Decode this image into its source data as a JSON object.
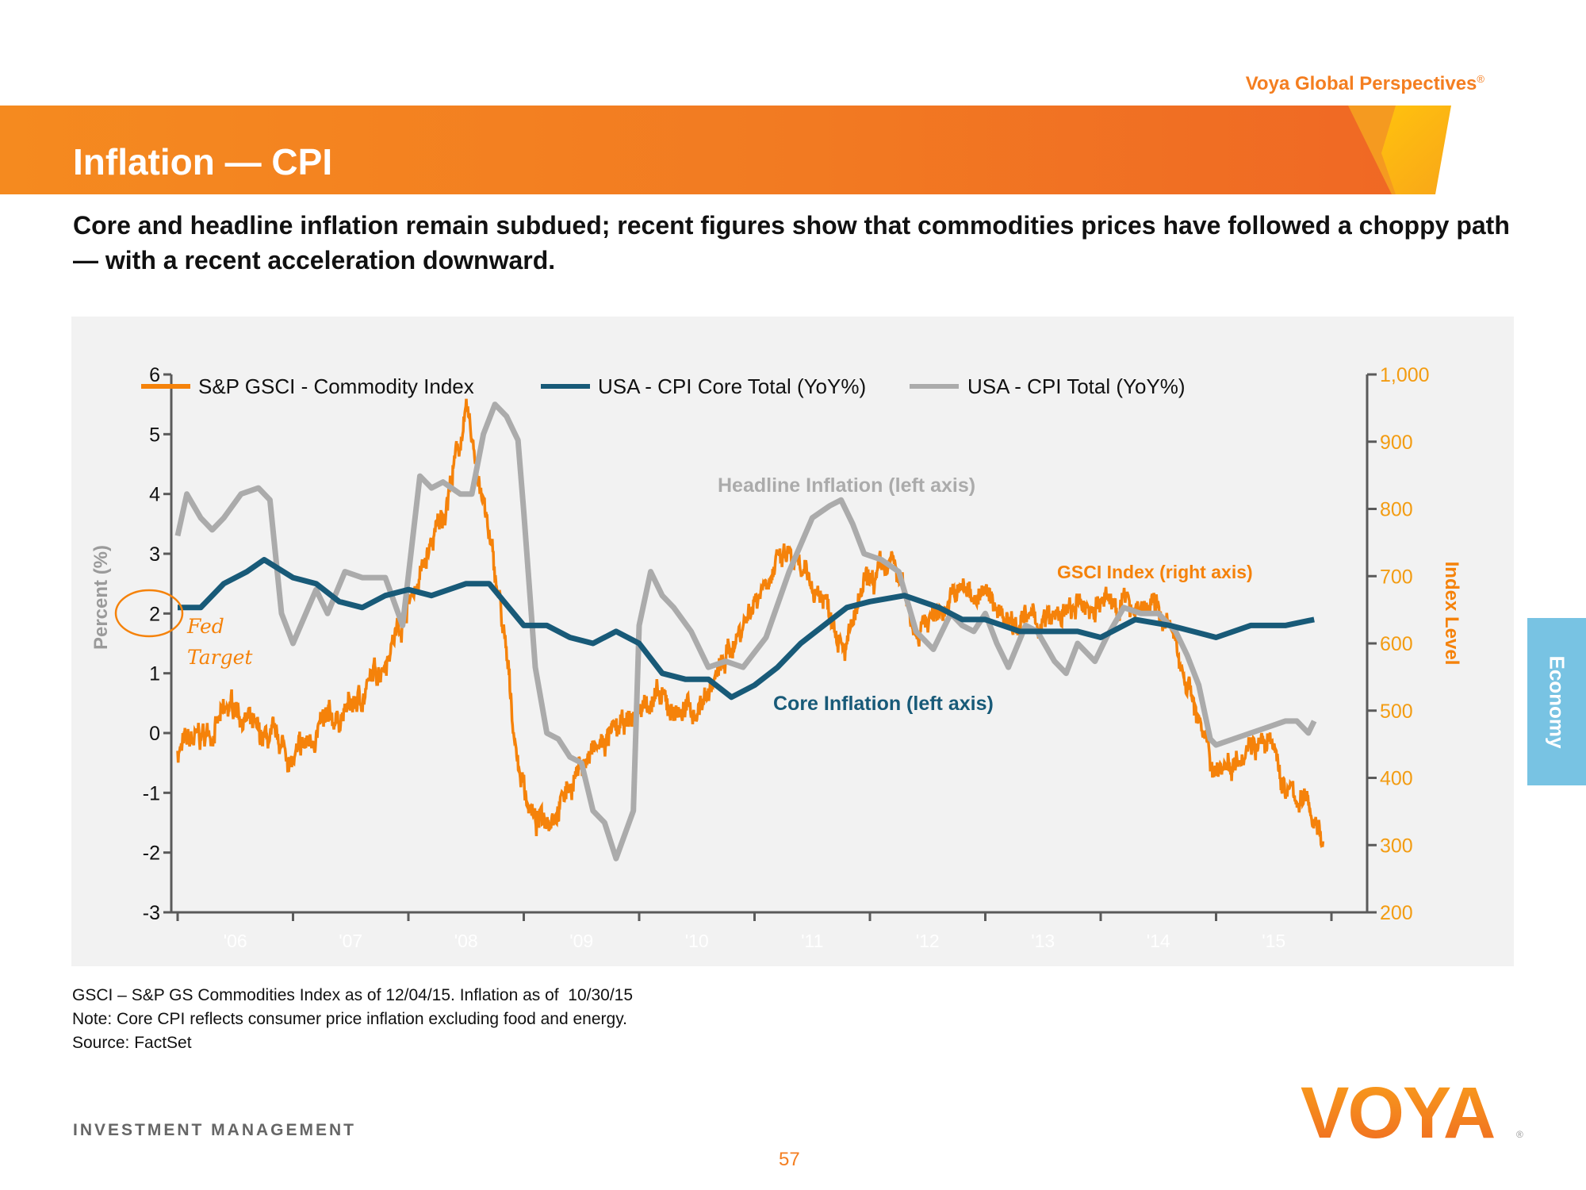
{
  "header": {
    "brand_tagline": "Voya Global Perspectives",
    "brand_mark": "®",
    "title": "Inflation — CPI",
    "subtitle": "Core and headline inflation remain subdued; recent figures show that commodities prices have followed a choppy path — with a recent acceleration downward."
  },
  "colors": {
    "brand_orange": "#F47E20",
    "gsci": "#F5820A",
    "core": "#185A78",
    "headline": "#ABABAB",
    "side_tab": "#78C3E3"
  },
  "side_tab": {
    "label": "Economy"
  },
  "footnotes": [
    "GSCI – S&P GS Commodities Index as of 12/04/15. Inflation as of  10/30/15",
    "Note: Core CPI reflects consumer price inflation excluding food and energy.",
    "Source: FactSet"
  ],
  "footer": {
    "division": "INVESTMENT MANAGEMENT",
    "page_number": "57",
    "logo_text": "VOYA"
  },
  "chart_data": {
    "type": "line",
    "title": "",
    "xlabel": "",
    "ylabel": "Percent (%)",
    "y2label": "Index Level",
    "ylim": [
      -3,
      6
    ],
    "y2lim": [
      200,
      1000
    ],
    "xlim": [
      2005.95,
      2016.0
    ],
    "yticks": [
      6,
      5,
      4,
      3,
      2,
      1,
      0,
      -1,
      -2,
      -3
    ],
    "y2ticks": [
      "1,000",
      "900",
      "800",
      "700",
      "600",
      "500",
      "400",
      "300",
      "200"
    ],
    "y2tick_values": [
      1000,
      900,
      800,
      700,
      600,
      500,
      400,
      300,
      200
    ],
    "xtick_boundaries": [
      2006,
      2007,
      2008,
      2009,
      2010,
      2011,
      2012,
      2013,
      2014,
      2015,
      2016
    ],
    "xtick_labels": [
      "'06",
      "'07",
      "'08",
      "'09",
      "'10",
      "'11",
      "'12",
      "'13",
      "'14",
      "'15"
    ],
    "grid": false,
    "legend_position": "top",
    "series": [
      {
        "name": "S&P GSCI - Commodity Index",
        "axis": "right",
        "x": [
          2006.0,
          2006.3,
          2006.5,
          2006.7,
          2006.9,
          2007.0,
          2007.2,
          2007.4,
          2007.6,
          2007.8,
          2007.95,
          2008.1,
          2008.3,
          2008.5,
          2008.6,
          2008.8,
          2008.95,
          2009.1,
          2009.3,
          2009.5,
          2009.75,
          2009.9,
          2010.1,
          2010.3,
          2010.5,
          2010.7,
          2010.9,
          2011.1,
          2011.3,
          2011.4,
          2011.6,
          2011.8,
          2011.95,
          2012.2,
          2012.4,
          2012.6,
          2012.8,
          2013.0,
          2013.2,
          2013.5,
          2013.8,
          2014.0,
          2014.3,
          2014.5,
          2014.6,
          2014.8,
          2014.95,
          2015.1,
          2015.3,
          2015.5,
          2015.6,
          2015.8,
          2015.93
        ],
        "values": [
          440,
          470,
          510,
          460,
          450,
          420,
          470,
          490,
          520,
          580,
          640,
          700,
          790,
          940,
          860,
          650,
          420,
          330,
          360,
          420,
          460,
          480,
          520,
          500,
          500,
          560,
          630,
          700,
          730,
          700,
          670,
          600,
          680,
          720,
          620,
          650,
          680,
          670,
          640,
          630,
          650,
          660,
          660,
          650,
          620,
          520,
          420,
          420,
          460,
          440,
          380,
          360,
          310
        ]
      },
      {
        "name": "USA - CPI Core Total (YoY%)",
        "axis": "left",
        "x": [
          2006.0,
          2006.2,
          2006.4,
          2006.6,
          2006.75,
          2007.0,
          2007.2,
          2007.4,
          2007.6,
          2007.8,
          2008.0,
          2008.2,
          2008.5,
          2008.7,
          2009.0,
          2009.2,
          2009.4,
          2009.6,
          2009.8,
          2010.0,
          2010.2,
          2010.4,
          2010.6,
          2010.8,
          2011.0,
          2011.2,
          2011.4,
          2011.6,
          2011.8,
          2012.0,
          2012.3,
          2012.6,
          2012.8,
          2013.0,
          2013.3,
          2013.6,
          2013.8,
          2014.0,
          2014.3,
          2014.6,
          2014.8,
          2015.0,
          2015.3,
          2015.6,
          2015.85
        ],
        "values": [
          2.1,
          2.1,
          2.5,
          2.7,
          2.9,
          2.6,
          2.5,
          2.2,
          2.1,
          2.3,
          2.4,
          2.3,
          2.5,
          2.5,
          1.8,
          1.8,
          1.6,
          1.5,
          1.7,
          1.5,
          1.0,
          0.9,
          0.9,
          0.6,
          0.8,
          1.1,
          1.5,
          1.8,
          2.1,
          2.2,
          2.3,
          2.1,
          1.9,
          1.9,
          1.7,
          1.7,
          1.7,
          1.6,
          1.9,
          1.8,
          1.7,
          1.6,
          1.8,
          1.8,
          1.9
        ]
      },
      {
        "name": "USA - CPI Total (YoY%)",
        "axis": "left",
        "x": [
          2006.0,
          2006.08,
          2006.2,
          2006.3,
          2006.4,
          2006.55,
          2006.7,
          2006.8,
          2006.9,
          2007.0,
          2007.2,
          2007.3,
          2007.45,
          2007.6,
          2007.8,
          2007.95,
          2008.1,
          2008.2,
          2008.3,
          2008.45,
          2008.55,
          2008.65,
          2008.75,
          2008.85,
          2008.95,
          2009.0,
          2009.1,
          2009.2,
          2009.3,
          2009.4,
          2009.5,
          2009.6,
          2009.7,
          2009.8,
          2009.95,
          2010.0,
          2010.1,
          2010.2,
          2010.3,
          2010.45,
          2010.6,
          2010.75,
          2010.9,
          2011.1,
          2011.3,
          2011.5,
          2011.65,
          2011.75,
          2011.85,
          2011.95,
          2012.1,
          2012.25,
          2012.4,
          2012.55,
          2012.7,
          2012.8,
          2012.9,
          2013.0,
          2013.1,
          2013.2,
          2013.35,
          2013.45,
          2013.6,
          2013.7,
          2013.8,
          2013.95,
          2014.05,
          2014.2,
          2014.35,
          2014.5,
          2014.65,
          2014.75,
          2014.85,
          2014.95,
          2015.0,
          2015.15,
          2015.3,
          2015.45,
          2015.6,
          2015.7,
          2015.8,
          2015.85
        ],
        "values": [
          3.3,
          4.0,
          3.6,
          3.4,
          3.6,
          4.0,
          4.1,
          3.9,
          2.0,
          1.5,
          2.4,
          2.0,
          2.7,
          2.6,
          2.6,
          1.8,
          4.3,
          4.1,
          4.2,
          4.0,
          4.0,
          5.0,
          5.5,
          5.3,
          4.9,
          3.7,
          1.1,
          0.0,
          -0.1,
          -0.4,
          -0.5,
          -1.3,
          -1.5,
          -2.1,
          -1.3,
          1.8,
          2.7,
          2.3,
          2.1,
          1.7,
          1.1,
          1.2,
          1.1,
          1.6,
          2.7,
          3.6,
          3.8,
          3.9,
          3.5,
          3.0,
          2.9,
          2.7,
          1.7,
          1.4,
          2.0,
          1.8,
          1.7,
          2.0,
          1.5,
          1.1,
          1.8,
          1.7,
          1.2,
          1.0,
          1.5,
          1.2,
          1.6,
          2.1,
          2.0,
          2.0,
          1.7,
          1.3,
          0.8,
          -0.1,
          -0.2,
          -0.1,
          0.0,
          0.1,
          0.2,
          0.2,
          0.0,
          0.2
        ]
      }
    ],
    "annotations": [
      {
        "text": "Headline Inflation (left axis)",
        "series": "USA - CPI Total (YoY%)",
        "x": 2011.4,
        "y": 4.1,
        "axis": "left"
      },
      {
        "text": "GSCI Index (right axis)",
        "series": "S&P GSCI - Commodity Index",
        "x": 2013.8,
        "y": 2.65,
        "axis": "left"
      },
      {
        "text": "Core Inflation (left axis)",
        "series": "USA - CPI Core Total (YoY%)",
        "x": 2011.2,
        "y": 0.5,
        "axis": "left"
      },
      {
        "text_lines": [
          "Fed",
          "Target"
        ],
        "circled_tick": 2
      }
    ]
  }
}
